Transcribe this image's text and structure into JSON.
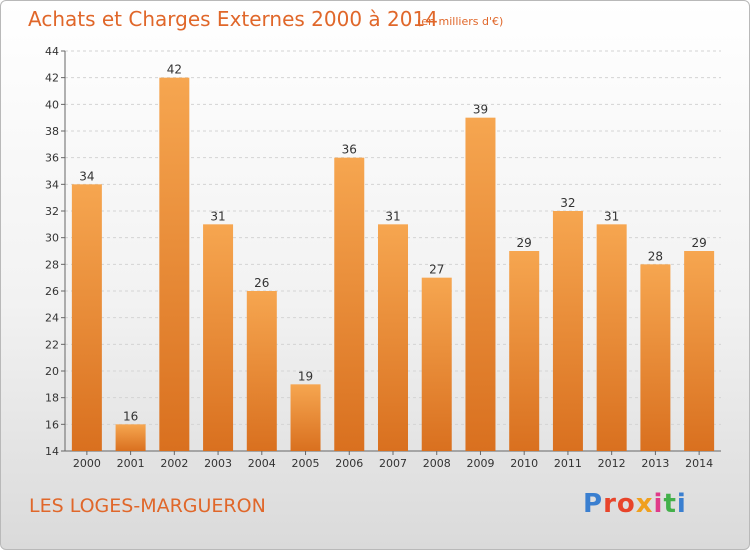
{
  "header": {
    "title": "Achats et Charges Externes 2000 à 2014",
    "subtitle": "(en milliers d'€)"
  },
  "footer": {
    "commune": "LES LOGES-MARGUERON",
    "logo_text": "Proxiti"
  },
  "colors": {
    "bar_top": "#f6a650",
    "bar_bottom": "#d9701f",
    "title": "#e0672a"
  },
  "chart_data": {
    "type": "bar",
    "title": "Achats et Charges Externes 2000 à 2014",
    "subtitle": "(en milliers d'€)",
    "categories": [
      "2000",
      "2001",
      "2002",
      "2003",
      "2004",
      "2005",
      "2006",
      "2007",
      "2008",
      "2009",
      "2010",
      "2011",
      "2012",
      "2013",
      "2014"
    ],
    "values": [
      34,
      16,
      42,
      31,
      26,
      19,
      36,
      31,
      27,
      39,
      29,
      32,
      31,
      28,
      29
    ],
    "ylim": [
      14,
      44
    ],
    "yticks": [
      14,
      16,
      18,
      20,
      22,
      24,
      26,
      28,
      30,
      32,
      34,
      36,
      38,
      40,
      42,
      44
    ],
    "grid": true,
    "data_labels": true
  }
}
